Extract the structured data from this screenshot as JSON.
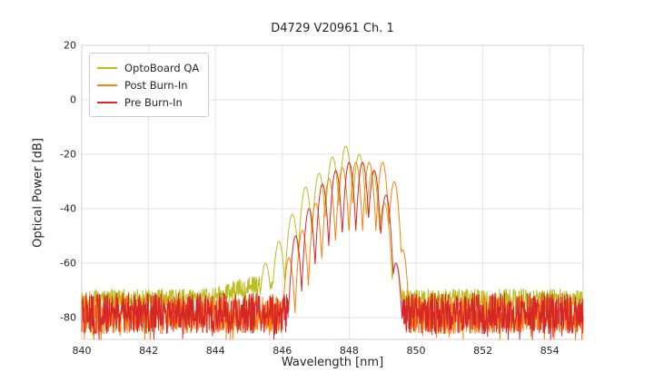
{
  "chart_data": {
    "type": "line",
    "title": "D4729 V20961 Ch. 1",
    "xlabel": "Wavelength [nm]",
    "ylabel": "Optical Power [dB]",
    "xlim": [
      840,
      855
    ],
    "ylim": [
      -88,
      20
    ],
    "x_ticks": [
      840,
      842,
      844,
      846,
      848,
      850,
      852,
      854
    ],
    "y_ticks": [
      20,
      0,
      -20,
      -40,
      -60,
      -80
    ],
    "grid": true,
    "legend_position": "upper-left",
    "description": "Optical spectrum of VCSEL channel with noise floor near -78 dB and multimode lasing peaks between 845.5 and 849.6 nm",
    "series": [
      {
        "name": "OptoBoard QA",
        "color": "#bcbd22",
        "noise_floor_db": -73,
        "noise_spread_db": 3.5,
        "noise_bump": {
          "center": 845.1,
          "height": 5,
          "width": 0.8
        },
        "mode_width_nm": 0.045,
        "modes": [
          [
            845.5,
            -60
          ],
          [
            845.9,
            -52
          ],
          [
            846.3,
            -42
          ],
          [
            846.7,
            -32
          ],
          [
            847.1,
            -27
          ],
          [
            847.5,
            -21
          ],
          [
            847.9,
            -17
          ],
          [
            848.3,
            -20
          ],
          [
            848.7,
            -26
          ],
          [
            849.05,
            -38
          ],
          [
            849.4,
            -60
          ]
        ]
      },
      {
        "name": "Post Burn-In",
        "color": "#ff7f0e",
        "noise_floor_db": -79,
        "noise_spread_db": 7,
        "mode_width_nm": 0.04,
        "modes": [
          [
            846.2,
            -58
          ],
          [
            846.6,
            -48
          ],
          [
            847.0,
            -38
          ],
          [
            847.4,
            -29
          ],
          [
            847.8,
            -25
          ],
          [
            848.2,
            -23
          ],
          [
            848.6,
            -23
          ],
          [
            849.0,
            -23
          ],
          [
            849.35,
            -30
          ],
          [
            849.6,
            -55
          ]
        ]
      },
      {
        "name": "Pre Burn-In",
        "color": "#d62728",
        "noise_floor_db": -78.5,
        "noise_spread_db": 7.5,
        "mode_width_nm": 0.04,
        "modes": [
          [
            846.4,
            -50
          ],
          [
            846.8,
            -40
          ],
          [
            847.2,
            -31
          ],
          [
            847.6,
            -26
          ],
          [
            848.0,
            -23
          ],
          [
            848.4,
            -23
          ],
          [
            848.75,
            -26
          ],
          [
            849.1,
            -35
          ],
          [
            849.4,
            -60
          ]
        ]
      }
    ]
  }
}
